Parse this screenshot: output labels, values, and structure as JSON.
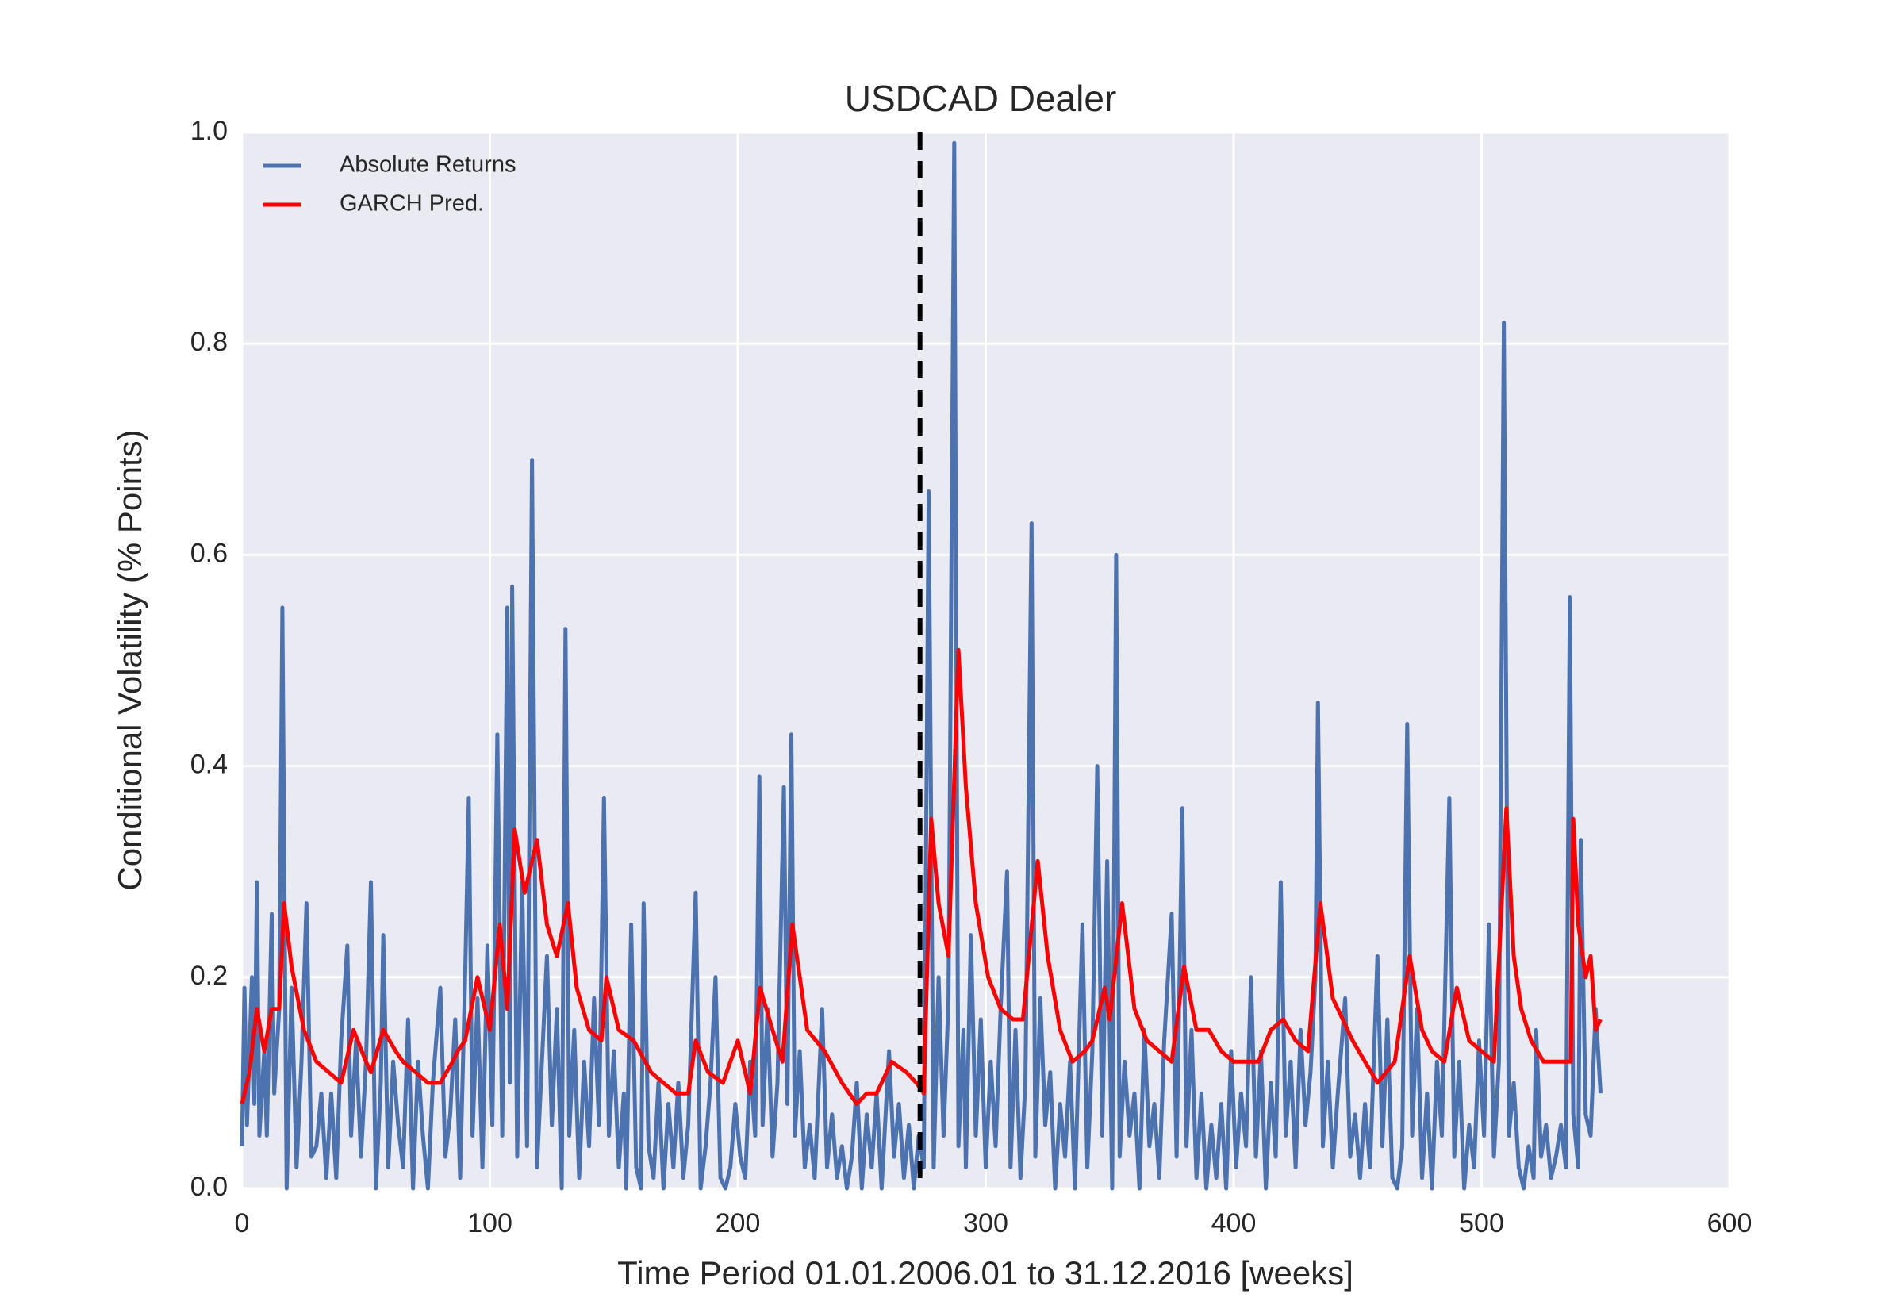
{
  "chart_data": {
    "type": "line",
    "title": "USDCAD Dealer",
    "xlabel": "Time Period 01.01.2006.01 to 31.12.2016 [weeks]",
    "ylabel": "Conditional Volatility (% Points)",
    "xlim": [
      0,
      600
    ],
    "ylim": [
      0,
      1.0
    ],
    "xticks": [
      0,
      100,
      200,
      300,
      400,
      500,
      600
    ],
    "yticks": [
      {
        "value": 0,
        "label": "0.0"
      },
      0.2,
      0.4,
      0.6,
      0.8,
      {
        "value": 1,
        "label": "1.0"
      }
    ],
    "grid": true,
    "legend": "upper left",
    "vline_x": 273.5,
    "series": [
      {
        "name": "Absolute Returns",
        "color": "#4c72b0",
        "x": [
          0,
          1,
          2,
          4,
          5,
          6,
          7,
          9,
          10,
          12,
          13,
          15,
          16.3,
          18,
          20,
          22,
          24,
          26,
          28,
          30,
          32,
          34,
          36,
          38,
          40,
          42.5,
          44,
          46,
          48,
          50,
          52,
          54,
          56,
          57,
          59,
          61,
          63,
          65,
          67,
          69,
          71,
          73,
          75,
          77,
          80,
          82,
          84,
          86,
          88,
          90,
          91.5,
          93,
          95,
          97,
          99,
          101,
          103,
          105,
          107,
          108,
          109,
          111,
          113,
          115,
          117,
          119,
          121,
          123,
          125,
          127,
          129,
          130.5,
          132,
          134,
          136,
          138,
          140,
          142,
          144,
          146,
          148,
          150,
          152,
          154,
          155,
          157,
          159,
          161,
          162,
          164,
          166,
          168,
          170,
          172,
          174,
          176,
          178,
          180,
          183,
          185,
          187,
          189,
          191,
          193,
          195,
          197,
          199,
          201,
          203,
          205,
          207,
          208.7,
          210,
          212,
          214,
          216,
          218.6,
          220,
          221.6,
          223,
          225,
          227,
          229,
          231,
          234,
          236,
          238,
          240,
          242,
          244,
          246,
          248,
          250,
          252,
          254,
          256,
          258,
          261,
          263,
          265,
          267,
          269,
          271,
          273,
          275,
          277,
          279,
          281,
          283,
          285,
          287.3,
          289,
          291,
          292,
          294,
          296,
          298,
          300,
          302,
          304,
          306,
          308.6,
          310,
          312,
          314,
          316,
          318.5,
          320,
          322,
          324,
          326,
          328,
          330,
          332,
          334,
          336,
          339,
          341,
          343,
          345,
          347,
          349,
          351,
          352.6,
          354,
          356,
          358,
          360,
          362,
          364,
          366,
          368,
          370,
          372,
          375,
          377,
          379.3,
          381,
          383,
          385,
          387,
          389,
          391,
          393,
          395,
          397,
          399,
          401,
          403,
          405,
          407,
          409,
          411,
          413,
          415,
          417,
          419,
          421,
          423,
          425,
          427,
          429,
          431,
          433,
          434,
          436,
          438,
          440,
          442,
          445,
          447,
          449,
          451,
          453,
          455,
          458,
          460,
          462,
          464,
          466,
          468,
          470,
          472,
          474,
          476,
          478,
          480,
          482,
          484,
          487,
          489,
          491,
          493,
          495,
          497,
          499,
          501,
          503,
          505,
          507,
          509,
          511,
          513,
          515,
          517,
          519,
          521,
          522,
          524,
          526,
          528,
          530,
          532,
          534,
          535.6,
          537,
          539,
          540,
          542,
          544,
          546,
          548
        ],
        "values": [
          0.04,
          0.19,
          0.06,
          0.2,
          0.08,
          0.29,
          0.05,
          0.13,
          0.05,
          0.26,
          0.09,
          0.17,
          0.55,
          0,
          0.19,
          0.02,
          0.12,
          0.27,
          0.03,
          0.04,
          0.09,
          0.01,
          0.09,
          0.01,
          0.14,
          0.23,
          0.05,
          0.14,
          0.03,
          0.12,
          0.29,
          0,
          0.1,
          0.24,
          0.02,
          0.12,
          0.06,
          0.02,
          0.16,
          0,
          0.12,
          0.05,
          0,
          0.1,
          0.19,
          0.03,
          0.07,
          0.16,
          0.01,
          0.2,
          0.37,
          0.05,
          0.18,
          0.02,
          0.23,
          0.06,
          0.43,
          0.05,
          0.55,
          0.1,
          0.57,
          0.03,
          0.29,
          0.04,
          0.69,
          0.02,
          0.12,
          0.22,
          0.06,
          0.17,
          0,
          0.53,
          0.05,
          0.15,
          0.01,
          0.12,
          0.04,
          0.18,
          0.06,
          0.37,
          0.05,
          0.13,
          0.02,
          0.09,
          0,
          0.25,
          0.02,
          0,
          0.27,
          0.04,
          0.01,
          0.1,
          0,
          0.08,
          0.02,
          0.1,
          0.01,
          0.06,
          0.28,
          0,
          0.04,
          0.1,
          0.2,
          0.01,
          0,
          0.02,
          0.08,
          0.03,
          0.01,
          0.12,
          0.05,
          0.39,
          0.06,
          0.17,
          0.03,
          0.1,
          0.38,
          0.08,
          0.43,
          0.05,
          0.13,
          0.02,
          0.06,
          0.01,
          0.17,
          0.02,
          0.07,
          0.01,
          0.04,
          0,
          0.03,
          0.1,
          0,
          0.07,
          0.02,
          0.09,
          0,
          0.13,
          0.03,
          0.08,
          0.01,
          0.06,
          0,
          0.05,
          0.02,
          0.66,
          0.02,
          0.2,
          0.05,
          0.18,
          0.99,
          0.04,
          0.15,
          0.02,
          0.24,
          0.05,
          0.16,
          0.02,
          0.12,
          0.04,
          0.17,
          0.3,
          0.02,
          0.15,
          0.01,
          0.1,
          0.63,
          0.03,
          0.18,
          0.06,
          0.11,
          0,
          0.08,
          0.03,
          0.12,
          0,
          0.25,
          0.02,
          0.13,
          0.4,
          0.05,
          0.31,
          0,
          0.6,
          0.03,
          0.12,
          0.05,
          0.09,
          0,
          0.15,
          0.04,
          0.08,
          0.01,
          0.14,
          0.26,
          0.03,
          0.36,
          0.04,
          0.15,
          0.01,
          0.09,
          0,
          0.06,
          0.01,
          0.08,
          0,
          0.13,
          0.02,
          0.09,
          0.04,
          0.2,
          0.03,
          0.13,
          0,
          0.1,
          0.03,
          0.29,
          0.05,
          0.12,
          0.02,
          0.15,
          0.06,
          0.11,
          0.2,
          0.46,
          0.04,
          0.12,
          0.02,
          0.09,
          0.18,
          0.03,
          0.07,
          0.01,
          0.08,
          0.02,
          0.22,
          0.04,
          0.16,
          0.01,
          0,
          0.04,
          0.44,
          0.05,
          0.17,
          0.01,
          0.09,
          0,
          0.12,
          0.05,
          0.37,
          0.03,
          0.12,
          0,
          0.06,
          0.02,
          0.14,
          0.05,
          0.25,
          0.03,
          0.12,
          0.82,
          0.05,
          0.1,
          0.02,
          0,
          0.04,
          0.01,
          0.15,
          0.03,
          0.06,
          0.01,
          0.03,
          0.06,
          0.02,
          0.56,
          0.07,
          0.02,
          0.33,
          0.07,
          0.05,
          0.17,
          0.09
        ]
      },
      {
        "name": "GARCH Pred.",
        "color": "#ff0000",
        "x": [
          0,
          3,
          6,
          9,
          12,
          15,
          17,
          20,
          25,
          30,
          35,
          40,
          45,
          50,
          52,
          57,
          62,
          65,
          70,
          75,
          80,
          85,
          87,
          90,
          95,
          100,
          104,
          107,
          110,
          114,
          119,
          123,
          127,
          131.5,
          135,
          140,
          145,
          147,
          152,
          158,
          165,
          170,
          175,
          180,
          183,
          188,
          194,
          200,
          205,
          209,
          214,
          218,
          222,
          228,
          235,
          242,
          248,
          252,
          256,
          262,
          268,
          272,
          275,
          278,
          281,
          285,
          289,
          292,
          296,
          301,
          306,
          311,
          315,
          321,
          325,
          330,
          335,
          340,
          343,
          348,
          350,
          355,
          360,
          365,
          370,
          375,
          380,
          385,
          390,
          395,
          400,
          405,
          410,
          415,
          420,
          425,
          430,
          435,
          440,
          444,
          448,
          453,
          458,
          465,
          471,
          476,
          480,
          485,
          490,
          495,
          500,
          505,
          510,
          513,
          516,
          520,
          525,
          530,
          536,
          537,
          539,
          542,
          544,
          546,
          548
        ],
        "values": [
          0.08,
          0.11,
          0.17,
          0.13,
          0.17,
          0.17,
          0.27,
          0.21,
          0.15,
          0.12,
          0.11,
          0.1,
          0.15,
          0.12,
          0.11,
          0.15,
          0.13,
          0.12,
          0.11,
          0.1,
          0.1,
          0.12,
          0.13,
          0.14,
          0.2,
          0.15,
          0.25,
          0.17,
          0.34,
          0.28,
          0.33,
          0.25,
          0.22,
          0.27,
          0.19,
          0.15,
          0.14,
          0.2,
          0.15,
          0.14,
          0.11,
          0.1,
          0.09,
          0.09,
          0.14,
          0.11,
          0.1,
          0.14,
          0.09,
          0.19,
          0.15,
          0.12,
          0.25,
          0.15,
          0.13,
          0.1,
          0.08,
          0.09,
          0.09,
          0.12,
          0.11,
          0.1,
          0.09,
          0.35,
          0.27,
          0.22,
          0.51,
          0.38,
          0.27,
          0.2,
          0.17,
          0.16,
          0.16,
          0.31,
          0.22,
          0.15,
          0.12,
          0.13,
          0.14,
          0.19,
          0.16,
          0.27,
          0.17,
          0.14,
          0.13,
          0.12,
          0.21,
          0.15,
          0.15,
          0.13,
          0.12,
          0.12,
          0.12,
          0.15,
          0.16,
          0.14,
          0.13,
          0.27,
          0.18,
          0.16,
          0.14,
          0.12,
          0.1,
          0.12,
          0.22,
          0.15,
          0.13,
          0.12,
          0.19,
          0.14,
          0.13,
          0.12,
          0.36,
          0.22,
          0.17,
          0.14,
          0.12,
          0.12,
          0.12,
          0.35,
          0.25,
          0.2,
          0.22,
          0.15,
          0.16
        ]
      }
    ]
  }
}
